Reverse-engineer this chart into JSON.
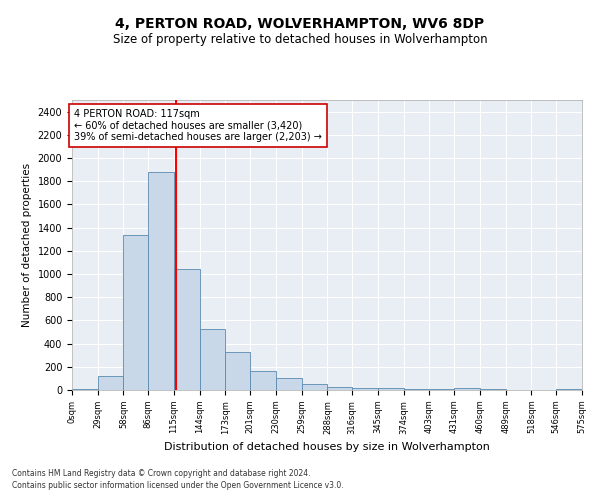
{
  "title": "4, PERTON ROAD, WOLVERHAMPTON, WV6 8DP",
  "subtitle": "Size of property relative to detached houses in Wolverhampton",
  "xlabel": "Distribution of detached houses by size in Wolverhampton",
  "ylabel": "Number of detached properties",
  "footnote1": "Contains HM Land Registry data © Crown copyright and database right 2024.",
  "footnote2": "Contains public sector information licensed under the Open Government Licence v3.0.",
  "annotation_title": "4 PERTON ROAD: 117sqm",
  "annotation_line1": "← 60% of detached houses are smaller (3,420)",
  "annotation_line2": "39% of semi-detached houses are larger (2,203) →",
  "bar_color": "#c8d8e8",
  "bar_edge_color": "#5a8ab0",
  "red_line_x": 117,
  "annotation_box_color": "#ffffff",
  "annotation_box_edge": "#cc0000",
  "bins": [
    0,
    29,
    58,
    86,
    115,
    144,
    173,
    201,
    230,
    259,
    288,
    316,
    345,
    374,
    403,
    431,
    460,
    489,
    518,
    546,
    575
  ],
  "bin_labels": [
    "0sqm",
    "29sqm",
    "58sqm",
    "86sqm",
    "115sqm",
    "144sqm",
    "173sqm",
    "201sqm",
    "230sqm",
    "259sqm",
    "288sqm",
    "316sqm",
    "345sqm",
    "374sqm",
    "403sqm",
    "431sqm",
    "460sqm",
    "489sqm",
    "518sqm",
    "546sqm",
    "575sqm"
  ],
  "bar_heights": [
    10,
    120,
    1340,
    1880,
    1040,
    530,
    330,
    160,
    100,
    50,
    30,
    20,
    15,
    10,
    5,
    15,
    5,
    3,
    0,
    5
  ],
  "ylim": [
    0,
    2500
  ],
  "yticks": [
    0,
    200,
    400,
    600,
    800,
    1000,
    1200,
    1400,
    1600,
    1800,
    2000,
    2200,
    2400
  ],
  "background_color": "#e8eef4",
  "grid_color": "#ffffff",
  "title_fontsize": 10,
  "subtitle_fontsize": 8.5
}
